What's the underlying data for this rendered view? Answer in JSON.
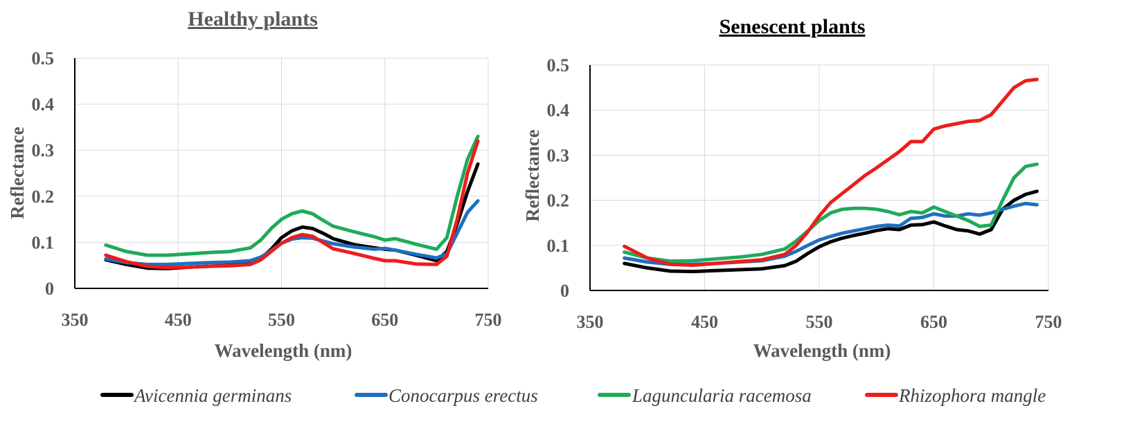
{
  "legend": [
    {
      "name": "Avicennia germinans",
      "color": "#000000"
    },
    {
      "name": "Conocarpus erectus",
      "color": "#1f6fc0"
    },
    {
      "name": "Laguncularia racemosa",
      "color": "#1faa5a"
    },
    {
      "name": "Rhizophora mangle",
      "color": "#ee1c1c"
    }
  ],
  "chart_data": [
    {
      "type": "line",
      "title": "Healthy plants",
      "xlabel": "Wavelength (nm)",
      "ylabel": "Reflectance",
      "xlim": [
        350,
        750
      ],
      "ylim": [
        0,
        0.5
      ],
      "xticks": [
        350,
        450,
        550,
        650,
        750
      ],
      "yticks": [
        0,
        0.1,
        0.2,
        0.3,
        0.4,
        0.5
      ],
      "grid": true,
      "series": [
        {
          "name": "Avicennia germinans",
          "color": "#000000",
          "x": [
            380,
            400,
            420,
            440,
            460,
            480,
            500,
            520,
            530,
            540,
            550,
            560,
            570,
            580,
            590,
            600,
            620,
            640,
            650,
            660,
            680,
            700,
            710,
            720,
            730,
            740
          ],
          "y": [
            0.062,
            0.052,
            0.044,
            0.043,
            0.046,
            0.048,
            0.05,
            0.055,
            0.065,
            0.085,
            0.11,
            0.125,
            0.133,
            0.13,
            0.12,
            0.108,
            0.095,
            0.088,
            0.085,
            0.083,
            0.072,
            0.06,
            0.08,
            0.14,
            0.21,
            0.27
          ]
        },
        {
          "name": "Conocarpus erectus",
          "color": "#1f6fc0",
          "x": [
            380,
            400,
            420,
            440,
            460,
            480,
            500,
            520,
            530,
            540,
            550,
            560,
            570,
            580,
            590,
            600,
            620,
            640,
            650,
            660,
            680,
            700,
            710,
            720,
            730,
            740
          ],
          "y": [
            0.064,
            0.056,
            0.052,
            0.052,
            0.054,
            0.056,
            0.057,
            0.06,
            0.068,
            0.082,
            0.098,
            0.107,
            0.11,
            0.109,
            0.103,
            0.097,
            0.09,
            0.085,
            0.087,
            0.083,
            0.074,
            0.066,
            0.075,
            0.12,
            0.165,
            0.19
          ]
        },
        {
          "name": "Laguncularia racemosa",
          "color": "#1faa5a",
          "x": [
            380,
            400,
            420,
            440,
            460,
            480,
            500,
            520,
            530,
            540,
            550,
            560,
            570,
            580,
            590,
            600,
            620,
            640,
            650,
            660,
            680,
            700,
            710,
            720,
            730,
            740
          ],
          "y": [
            0.094,
            0.08,
            0.072,
            0.072,
            0.075,
            0.078,
            0.08,
            0.088,
            0.105,
            0.13,
            0.15,
            0.162,
            0.168,
            0.162,
            0.148,
            0.135,
            0.123,
            0.112,
            0.105,
            0.108,
            0.096,
            0.085,
            0.11,
            0.2,
            0.28,
            0.33
          ]
        },
        {
          "name": "Rhizophora mangle",
          "color": "#ee1c1c",
          "x": [
            380,
            400,
            420,
            440,
            460,
            480,
            500,
            520,
            530,
            540,
            550,
            560,
            570,
            580,
            590,
            600,
            620,
            640,
            650,
            660,
            680,
            700,
            710,
            720,
            730,
            740
          ],
          "y": [
            0.072,
            0.058,
            0.048,
            0.045,
            0.046,
            0.048,
            0.049,
            0.052,
            0.062,
            0.08,
            0.098,
            0.11,
            0.117,
            0.113,
            0.1,
            0.086,
            0.076,
            0.065,
            0.06,
            0.06,
            0.053,
            0.052,
            0.07,
            0.15,
            0.25,
            0.32
          ]
        }
      ]
    },
    {
      "type": "line",
      "title": "Senescent plants",
      "xlabel": "Wavelength (nm)",
      "ylabel": "Reflectance",
      "xlim": [
        350,
        750
      ],
      "ylim": [
        0,
        0.5
      ],
      "xticks": [
        350,
        450,
        550,
        650,
        750
      ],
      "yticks": [
        0,
        0.1,
        0.2,
        0.3,
        0.4,
        0.5
      ],
      "grid": true,
      "series": [
        {
          "name": "Avicennia germinans",
          "color": "#000000",
          "x": [
            380,
            400,
            420,
            440,
            460,
            480,
            500,
            520,
            530,
            540,
            550,
            560,
            570,
            580,
            590,
            600,
            610,
            620,
            630,
            640,
            650,
            660,
            670,
            680,
            690,
            700,
            710,
            720,
            730,
            740
          ],
          "y": [
            0.06,
            0.05,
            0.043,
            0.042,
            0.044,
            0.046,
            0.048,
            0.055,
            0.065,
            0.082,
            0.097,
            0.108,
            0.116,
            0.122,
            0.127,
            0.133,
            0.137,
            0.135,
            0.145,
            0.146,
            0.152,
            0.143,
            0.135,
            0.132,
            0.125,
            0.135,
            0.18,
            0.2,
            0.213,
            0.22
          ]
        },
        {
          "name": "Conocarpus erectus",
          "color": "#1f6fc0",
          "x": [
            380,
            400,
            420,
            440,
            460,
            480,
            500,
            520,
            530,
            540,
            550,
            560,
            570,
            580,
            590,
            600,
            610,
            620,
            630,
            640,
            650,
            660,
            670,
            680,
            690,
            700,
            710,
            720,
            730,
            740
          ],
          "y": [
            0.072,
            0.063,
            0.058,
            0.058,
            0.06,
            0.063,
            0.066,
            0.076,
            0.087,
            0.1,
            0.112,
            0.12,
            0.127,
            0.132,
            0.137,
            0.142,
            0.145,
            0.143,
            0.16,
            0.162,
            0.17,
            0.165,
            0.165,
            0.17,
            0.167,
            0.172,
            0.18,
            0.187,
            0.193,
            0.19
          ]
        },
        {
          "name": "Laguncularia racemosa",
          "color": "#1faa5a",
          "x": [
            380,
            400,
            420,
            440,
            460,
            480,
            500,
            520,
            530,
            540,
            550,
            560,
            570,
            580,
            590,
            600,
            610,
            620,
            630,
            640,
            650,
            660,
            670,
            680,
            690,
            700,
            710,
            720,
            730,
            740
          ],
          "y": [
            0.085,
            0.072,
            0.065,
            0.066,
            0.07,
            0.074,
            0.08,
            0.092,
            0.11,
            0.132,
            0.155,
            0.172,
            0.18,
            0.182,
            0.182,
            0.18,
            0.175,
            0.168,
            0.175,
            0.172,
            0.185,
            0.175,
            0.165,
            0.155,
            0.142,
            0.145,
            0.2,
            0.25,
            0.275,
            0.28
          ]
        },
        {
          "name": "Rhizophora mangle",
          "color": "#ee1c1c",
          "x": [
            380,
            400,
            420,
            440,
            460,
            480,
            500,
            520,
            530,
            540,
            550,
            560,
            570,
            580,
            590,
            600,
            610,
            620,
            630,
            640,
            650,
            660,
            670,
            680,
            690,
            700,
            710,
            720,
            730,
            740
          ],
          "y": [
            0.098,
            0.072,
            0.058,
            0.056,
            0.06,
            0.064,
            0.068,
            0.08,
            0.1,
            0.13,
            0.165,
            0.195,
            0.215,
            0.235,
            0.255,
            0.272,
            0.29,
            0.308,
            0.33,
            0.33,
            0.358,
            0.365,
            0.37,
            0.375,
            0.377,
            0.39,
            0.42,
            0.45,
            0.465,
            0.468
          ]
        }
      ]
    }
  ]
}
